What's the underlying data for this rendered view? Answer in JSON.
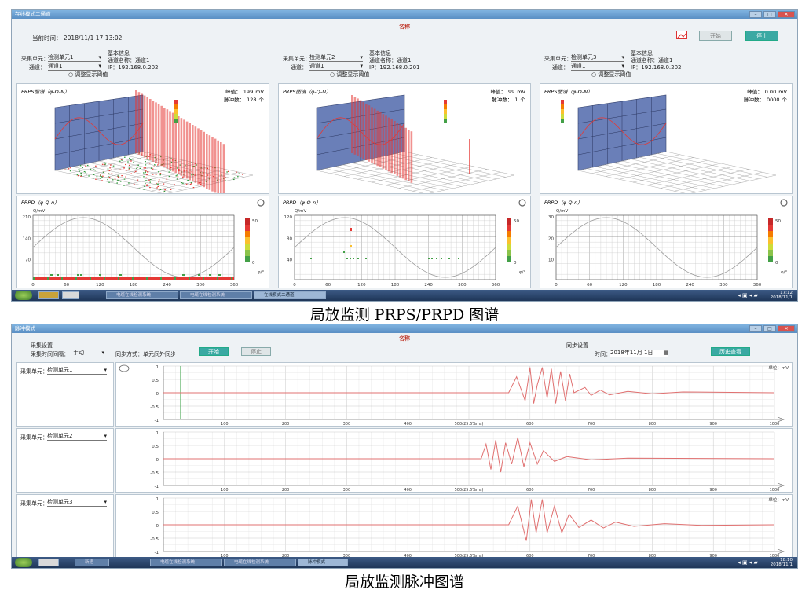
{
  "screen1": {
    "window_title": "在线模式二通道",
    "app_title": "名称",
    "current_time_label": "当前时间：",
    "current_time_value": "2018/11/1 17:13:02",
    "start_label": "开始",
    "stop_label": "停止",
    "channels": [
      {
        "unit_label": "采集单元：",
        "unit_value": "检测单元1",
        "channel_label": "通道：",
        "channel_value": "通道1",
        "info_title": "基本信息",
        "channel_name_label": "通道名称：",
        "channel_name_value": "通道1",
        "ip_label": "IP：",
        "ip_value": "192.168.0.202",
        "threshold_label": "调整显示阈值",
        "prps_title": "PRPS图谱（φ-Q-N）",
        "peak_label": "峰值：",
        "peak_value": "199",
        "peak_unit": "mV",
        "pulse_label": "脉冲数：",
        "pulse_value": "128",
        "pulse_unit": "个",
        "prpd_title": "PRPD（φ-Q-n）",
        "y_unit": "Q/mV",
        "x_unit": "φ/°",
        "y_ticks": [
          "210",
          "140",
          "70"
        ],
        "x_ticks": [
          "0",
          "60",
          "120",
          "180",
          "240",
          "300",
          "360"
        ],
        "cbar_top": "50",
        "cbar_bottom": "0"
      },
      {
        "unit_label": "采集单元：",
        "unit_value": "检测单元2",
        "channel_label": "通道：",
        "channel_value": "通道1",
        "info_title": "基本信息",
        "channel_name_label": "通道名称：",
        "channel_name_value": "通道1",
        "ip_label": "IP：",
        "ip_value": "192.168.0.201",
        "threshold_label": "调整显示阈值",
        "prps_title": "PRPS图谱（φ-Q-N）",
        "peak_label": "峰值：",
        "peak_value": "99",
        "peak_unit": "mV",
        "pulse_label": "脉冲数：",
        "pulse_value": "1",
        "pulse_unit": "个",
        "prpd_title": "PRPD（φ-Q-n）",
        "y_unit": "Q/mV",
        "x_unit": "φ/°",
        "y_ticks": [
          "120",
          "80",
          "40"
        ],
        "x_ticks": [
          "0",
          "60",
          "120",
          "180",
          "240",
          "300",
          "360"
        ],
        "cbar_top": "50",
        "cbar_bottom": "0"
      },
      {
        "unit_label": "采集单元：",
        "unit_value": "检测单元3",
        "channel_label": "通道：",
        "channel_value": "通道1",
        "info_title": "基本信息",
        "channel_name_label": "通道名称：",
        "channel_name_value": "通道1",
        "ip_label": "IP：",
        "ip_value": "192.168.0.202",
        "threshold_label": "调整显示阈值",
        "prps_title": "PRPS图谱（φ-Q-N）",
        "peak_label": "峰值：",
        "peak_value": "0.00",
        "peak_unit": "mV",
        "pulse_label": "脉冲数：",
        "pulse_value": "0000",
        "pulse_unit": "个",
        "prpd_title": "PRPD（φ-Q-n）",
        "y_unit": "Q/mV",
        "x_unit": "φ/°",
        "y_ticks": [
          "30",
          "20",
          "10"
        ],
        "x_ticks": [
          "0",
          "60",
          "120",
          "180",
          "240",
          "300",
          "360"
        ],
        "cbar_top": "50",
        "cbar_bottom": "0"
      }
    ],
    "taskbar": {
      "items": [
        "电缆在线检测系统",
        "电缆在线检测系统",
        "在线模式二通道"
      ],
      "time": "17:12",
      "date": "2018/11/1"
    }
  },
  "screen2": {
    "window_title": "脉冲模式",
    "app_title": "名称",
    "capture_settings_label": "采集设置",
    "interval_label": "采集时间间隔：",
    "interval_value": "手动",
    "sync_label": "同步方式：单元间外同步",
    "start_label": "开始",
    "stop_label": "停止",
    "sync_settings_label": "同步设置",
    "time_label": "时间：",
    "time_value": "2018年11月 1日",
    "history_button": "历史查看",
    "units_label": "单位：mV",
    "rows": [
      {
        "unit_label": "采集单元：",
        "unit_value": "检测单元1"
      },
      {
        "unit_label": "采集单元：",
        "unit_value": "检测单元2"
      },
      {
        "unit_label": "采集单元：",
        "unit_value": "检测单元3"
      }
    ],
    "y_ticks": [
      "1",
      "0.5",
      "0",
      "-0.5",
      "-1"
    ],
    "x_ticks": [
      "100",
      "200",
      "300",
      "400",
      "500(25.6%ms)",
      "600",
      "700",
      "800",
      "900",
      "1000"
    ],
    "taskbar": {
      "items": [
        "新建",
        "电缆在线检测系统",
        "电缆在线检测系统",
        "脉冲模式"
      ],
      "time": "18:10",
      "date": "2018/11/1"
    }
  },
  "captions": {
    "top": "局放监测 PRPS/PRPD 图谱",
    "bottom": "局放监测脉冲图谱"
  },
  "colors": {
    "accent": "#3aa9a3",
    "wave": "#e07070",
    "pulse_bar": "#e53935",
    "panel_blue": "#5b6ea8",
    "noise": "#2e9b3a"
  }
}
